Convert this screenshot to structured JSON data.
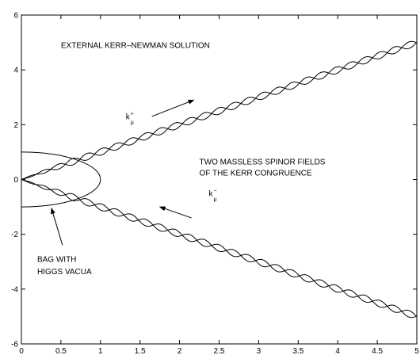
{
  "chart_data": {
    "type": "line",
    "title": "",
    "xlabel": "",
    "ylabel": "",
    "xlim": [
      0,
      5
    ],
    "ylim": [
      -6,
      6
    ],
    "x_ticks": [
      0,
      0.5,
      1,
      1.5,
      2,
      2.5,
      3,
      3.5,
      4,
      4.5,
      5
    ],
    "x_tick_labels": [
      "0",
      "0.5",
      "1",
      "1.5",
      "2",
      "2.5",
      "3",
      "3.5",
      "4",
      "4.5",
      "5"
    ],
    "y_ticks": [
      -6,
      -4,
      -2,
      0,
      2,
      4,
      6
    ],
    "y_tick_labels": [
      "-6",
      "-4",
      "-2",
      "0",
      "2",
      "4",
      "6"
    ],
    "grid": false,
    "series": [
      {
        "kind": "helix-strand",
        "direction": "upper",
        "slope": 1.0,
        "amplitude": 0.12,
        "period": 0.37,
        "phase": 0
      },
      {
        "kind": "helix-strand",
        "direction": "upper",
        "slope": 1.0,
        "amplitude": 0.12,
        "period": 0.37,
        "phase": 3.14159
      },
      {
        "kind": "helix-strand",
        "direction": "lower",
        "slope": -1.0,
        "amplitude": 0.12,
        "period": 0.37,
        "phase": 0
      },
      {
        "kind": "helix-strand",
        "direction": "lower",
        "slope": -1.0,
        "amplitude": 0.12,
        "period": 0.37,
        "phase": 3.14159
      },
      {
        "kind": "ellipse",
        "center": [
          0,
          0
        ],
        "rx": 1.0,
        "ry": 1.0
      }
    ],
    "annotations": [
      {
        "text": "EXTERNAL KERR–NEWMAN SOLUTION",
        "x": 0.5,
        "y": 4.8
      },
      {
        "text": "TWO MASSLESS SPINOR FIELDS",
        "x": 2.25,
        "y": 0.55
      },
      {
        "text": "OF THE KERR CONGRUENCE",
        "x": 2.25,
        "y": 0.15
      },
      {
        "text": "BAG WITH",
        "x": 0.2,
        "y": -3.0
      },
      {
        "text": "HIGGS VACUA",
        "x": 0.2,
        "y": -3.45
      }
    ],
    "arrows": [
      {
        "from": [
          1.65,
          2.3
        ],
        "to": [
          2.18,
          2.9
        ]
      },
      {
        "from": [
          2.15,
          -1.4
        ],
        "to": [
          1.75,
          -1.0
        ]
      },
      {
        "from": [
          0.52,
          -2.4
        ],
        "to": [
          0.38,
          -1.05
        ]
      }
    ],
    "labels": [
      {
        "base": "k",
        "sub": "μ",
        "sup": "+",
        "x": 1.32,
        "y": 2.2
      },
      {
        "base": "k",
        "sub": "μ",
        "sup": "−",
        "x": 2.37,
        "y": -0.6
      }
    ]
  }
}
